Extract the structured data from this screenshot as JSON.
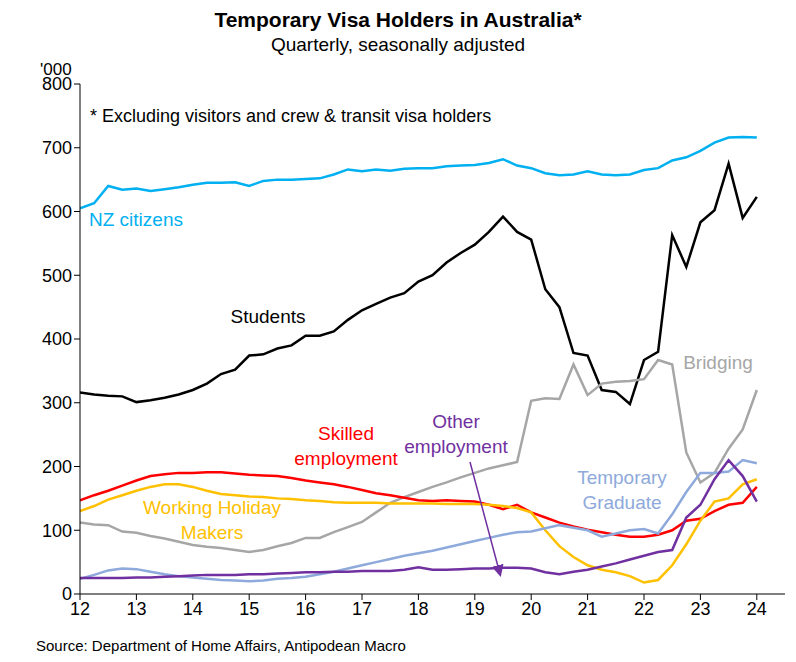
{
  "chart_data": {
    "type": "line",
    "title": "Temporary Visa Holders in Australia*",
    "subtitle": "Quarterly, seasonally adjusted",
    "y_label": "'000",
    "annotations": [
      "* Excluding visitors and crew & transit visa holders"
    ],
    "source": "Source: Department of Home Affairs, Antipodean Macro",
    "x": [
      12,
      12.25,
      12.5,
      12.75,
      13,
      13.25,
      13.5,
      13.75,
      14,
      14.25,
      14.5,
      14.75,
      15,
      15.25,
      15.5,
      15.75,
      16,
      16.25,
      16.5,
      16.75,
      17,
      17.25,
      17.5,
      17.75,
      18,
      18.25,
      18.5,
      18.75,
      19,
      19.25,
      19.5,
      19.75,
      20,
      20.25,
      20.5,
      20.75,
      21,
      21.25,
      21.5,
      21.75,
      22,
      22.25,
      22.5,
      22.75,
      23,
      23.25,
      23.5,
      23.75,
      24
    ],
    "xlim": [
      12,
      24.5
    ],
    "xticks": [
      12,
      13,
      14,
      15,
      16,
      17,
      18,
      19,
      20,
      21,
      22,
      23,
      24
    ],
    "ylim": [
      0,
      800
    ],
    "yticks": [
      0,
      100,
      200,
      300,
      400,
      500,
      600,
      700,
      800
    ],
    "grid": false,
    "series": [
      {
        "name": "NZ citizens",
        "color": "#00B0F0",
        "values": [
          605,
          613,
          640,
          634,
          636,
          632,
          635,
          638,
          642,
          645,
          645,
          646,
          640,
          648,
          650,
          650,
          651,
          652,
          658,
          666,
          663,
          666,
          664,
          667,
          668,
          668,
          671,
          672,
          673,
          676,
          682,
          672,
          668,
          660,
          657,
          658,
          663,
          658,
          657,
          658,
          665,
          668,
          680,
          685,
          695,
          708,
          716,
          717,
          716
        ]
      },
      {
        "name": "Students",
        "color": "#000000",
        "values": [
          316,
          313,
          311,
          310,
          301,
          304,
          308,
          313,
          320,
          330,
          345,
          352,
          374,
          376,
          385,
          390,
          405,
          405,
          412,
          430,
          445,
          455,
          465,
          472,
          490,
          500,
          520,
          535,
          548,
          568,
          592,
          568,
          556,
          478,
          450,
          378,
          374,
          320,
          317,
          298,
          367,
          380,
          563,
          513,
          583,
          602,
          675,
          590,
          623
        ]
      },
      {
        "name": "Bridging",
        "color": "#A6A6A6",
        "values": [
          112,
          109,
          108,
          98,
          96,
          91,
          87,
          82,
          77,
          74,
          72,
          69,
          66,
          69,
          75,
          80,
          88,
          88,
          97,
          105,
          113,
          128,
          143,
          152,
          160,
          168,
          175,
          183,
          190,
          197,
          202,
          207,
          303,
          307,
          306,
          360,
          312,
          330,
          333,
          334,
          337,
          367,
          360,
          222,
          175,
          190,
          228,
          258,
          320
        ]
      },
      {
        "name": "Skilled employment",
        "color": "#FF0000",
        "values": [
          147,
          155,
          162,
          170,
          178,
          185,
          188,
          190,
          190,
          191,
          191,
          189,
          187,
          186,
          185,
          182,
          178,
          175,
          172,
          168,
          163,
          158,
          155,
          151,
          147,
          146,
          147,
          146,
          145,
          140,
          133,
          140,
          128,
          120,
          112,
          106,
          101,
          97,
          93,
          90,
          90,
          93,
          100,
          115,
          118,
          130,
          140,
          143,
          168
        ]
      },
      {
        "name": "Working Holiday Makers",
        "color": "#FFC000",
        "values": [
          130,
          138,
          148,
          155,
          162,
          168,
          172,
          172,
          168,
          162,
          157,
          155,
          153,
          152,
          150,
          149,
          147,
          146,
          144,
          143,
          143,
          143,
          142,
          142,
          142,
          142,
          141,
          141,
          141,
          140,
          138,
          135,
          128,
          100,
          75,
          58,
          45,
          38,
          34,
          28,
          18,
          22,
          45,
          78,
          115,
          145,
          150,
          172,
          180
        ]
      },
      {
        "name": "Temporary Graduate",
        "color": "#8EA9DB",
        "values": [
          24,
          30,
          37,
          40,
          39,
          35,
          31,
          28,
          26,
          24,
          22,
          21,
          20,
          21,
          24,
          25,
          27,
          31,
          35,
          40,
          45,
          50,
          55,
          60,
          64,
          68,
          73,
          78,
          83,
          88,
          93,
          97,
          98,
          103,
          108,
          104,
          100,
          90,
          95,
          100,
          102,
          95,
          125,
          160,
          190,
          190,
          192,
          210,
          205
        ]
      },
      {
        "name": "Other employment",
        "color": "#7030A0",
        "values": [
          25,
          25,
          25,
          25,
          26,
          26,
          27,
          28,
          29,
          30,
          30,
          30,
          31,
          31,
          32,
          33,
          34,
          34,
          35,
          35,
          36,
          36,
          36,
          38,
          42,
          38,
          38,
          39,
          40,
          40,
          41,
          41,
          40,
          34,
          31,
          35,
          38,
          43,
          48,
          54,
          60,
          66,
          69,
          120,
          140,
          180,
          210,
          185,
          145
        ]
      }
    ]
  }
}
